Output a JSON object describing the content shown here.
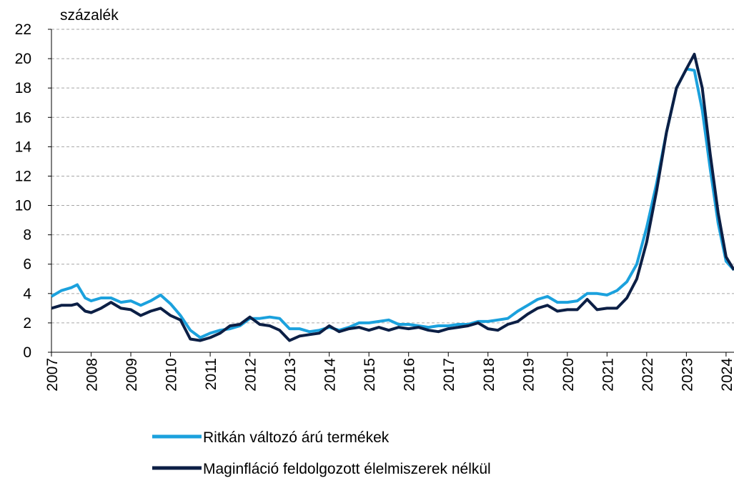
{
  "chart_data": {
    "type": "line",
    "y_label": "százalék",
    "x": [
      2007,
      2007.25,
      2007.5,
      2007.65,
      2007.85,
      2008,
      2008.25,
      2008.5,
      2008.75,
      2009,
      2009.25,
      2009.5,
      2009.75,
      2010,
      2010.25,
      2010.5,
      2010.75,
      2011,
      2011.25,
      2011.5,
      2011.75,
      2012,
      2012.25,
      2012.5,
      2012.75,
      2013,
      2013.25,
      2013.5,
      2013.75,
      2014,
      2014.25,
      2014.5,
      2014.75,
      2015,
      2015.25,
      2015.5,
      2015.75,
      2016,
      2016.25,
      2016.5,
      2016.75,
      2017,
      2017.25,
      2017.5,
      2017.75,
      2018,
      2018.25,
      2018.5,
      2018.75,
      2019,
      2019.25,
      2019.5,
      2019.75,
      2020,
      2020.25,
      2020.5,
      2020.75,
      2021,
      2021.25,
      2021.5,
      2021.75,
      2022,
      2022.25,
      2022.5,
      2022.75,
      2023,
      2023.2,
      2023.4,
      2023.6,
      2023.8,
      2024,
      2024.2
    ],
    "series": [
      {
        "name": "Ritkán változó árú termékek",
        "color": "#1ba1dd",
        "values": [
          3.8,
          4.2,
          4.4,
          4.6,
          3.7,
          3.5,
          3.7,
          3.7,
          3.4,
          3.5,
          3.2,
          3.5,
          3.9,
          3.3,
          2.5,
          1.5,
          1.0,
          1.3,
          1.5,
          1.6,
          1.8,
          2.3,
          2.3,
          2.4,
          2.3,
          1.6,
          1.6,
          1.4,
          1.5,
          1.7,
          1.5,
          1.7,
          2.0,
          2.0,
          2.1,
          2.2,
          1.9,
          1.9,
          1.8,
          1.7,
          1.8,
          1.8,
          1.9,
          1.9,
          2.1,
          2.1,
          2.2,
          2.3,
          2.8,
          3.2,
          3.6,
          3.8,
          3.4,
          3.4,
          3.5,
          4.0,
          4.0,
          3.9,
          4.2,
          4.8,
          6.0,
          8.5,
          11.5,
          15,
          18,
          19.3,
          19.2,
          16.5,
          12.5,
          8.8,
          6.2,
          5.6
        ]
      },
      {
        "name": "Maginfláció feldolgozott élelmiszerek nélkül",
        "color": "#0c1f45",
        "values": [
          3.0,
          3.2,
          3.2,
          3.3,
          2.8,
          2.7,
          3.0,
          3.4,
          3.0,
          2.9,
          2.5,
          2.8,
          3.0,
          2.5,
          2.2,
          0.9,
          0.8,
          1.0,
          1.3,
          1.8,
          1.9,
          2.4,
          1.9,
          1.8,
          1.5,
          0.8,
          1.1,
          1.2,
          1.3,
          1.8,
          1.4,
          1.6,
          1.7,
          1.5,
          1.7,
          1.5,
          1.7,
          1.6,
          1.7,
          1.5,
          1.4,
          1.6,
          1.7,
          1.8,
          2.0,
          1.6,
          1.5,
          1.9,
          2.1,
          2.6,
          3.0,
          3.2,
          2.8,
          2.9,
          2.9,
          3.6,
          2.9,
          3.0,
          3.0,
          3.7,
          5.0,
          7.5,
          11,
          15,
          18,
          19.3,
          20.3,
          18.0,
          13.5,
          9.5,
          6.5,
          5.6
        ]
      }
    ],
    "xlim": [
      2007,
      2024.2
    ],
    "xticks": [
      2007,
      2008,
      2009,
      2010,
      2011,
      2012,
      2013,
      2014,
      2015,
      2016,
      2017,
      2018,
      2019,
      2020,
      2021,
      2022,
      2023,
      2024
    ],
    "ylim": [
      0,
      22
    ],
    "yticks": [
      0,
      2,
      4,
      6,
      8,
      10,
      12,
      14,
      16,
      18,
      20,
      22
    ],
    "grid": true
  }
}
